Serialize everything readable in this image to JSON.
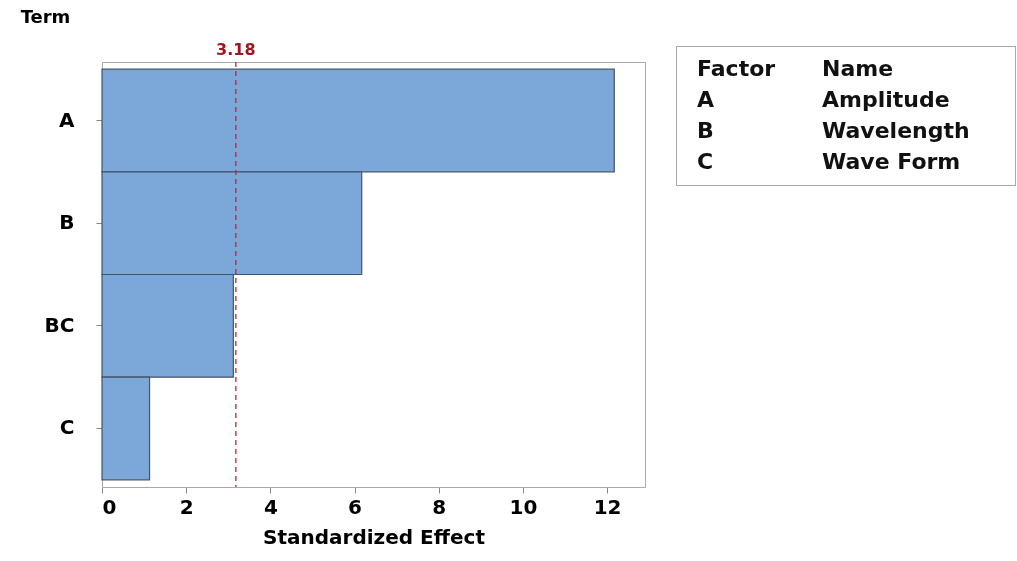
{
  "chart_data": {
    "type": "bar",
    "orientation": "horizontal",
    "xlabel": "Standardized Effect",
    "ylabel": "Term",
    "categories": [
      "A",
      "B",
      "BC",
      "C"
    ],
    "values": [
      12.17,
      6.17,
      3.12,
      1.13
    ],
    "color": "#7ba7d9",
    "xlim": [
      0,
      12.9
    ],
    "xticks": [
      0,
      2,
      4,
      6,
      8,
      10,
      12
    ],
    "ref_lines": [
      {
        "axis": "x",
        "value": 3.18,
        "label": "3.18",
        "color": "#c0262c",
        "line_style": "dashed"
      }
    ],
    "annotations": [
      "Factor",
      "Name",
      "A",
      "Amplitude",
      "B",
      "Wavelength",
      "C",
      "Wave Form"
    ],
    "grid": false
  }
}
